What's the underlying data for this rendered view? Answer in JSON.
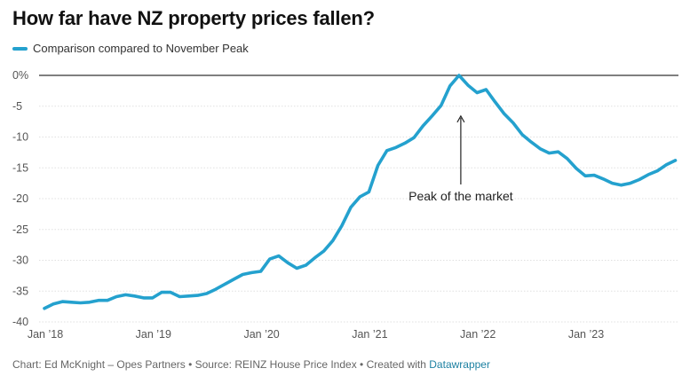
{
  "title": "How far have NZ property prices fallen?",
  "footer": {
    "prefix": "Chart: Ed McKnight – Opes Partners • Source: REINZ House Price Index • Created with ",
    "link": "Datawrapper"
  },
  "colors": {
    "line": "#24a1ce",
    "grid": "#e0e0e0",
    "zero_line": "#333333",
    "tick_text": "#555555"
  },
  "chart_data": {
    "type": "line",
    "title": "How far have NZ property prices fallen?",
    "xlabel": "",
    "ylabel": "",
    "ylim": [
      -40,
      0
    ],
    "yticks": [
      0,
      -5,
      -10,
      -15,
      -20,
      -25,
      -30,
      -35,
      -40
    ],
    "ytick_labels": [
      "0%",
      "-5",
      "-10",
      "-15",
      "-20",
      "-25",
      "-30",
      "-35",
      "-40"
    ],
    "xticks": [
      {
        "date": "2018-01",
        "label": "Jan ’18"
      },
      {
        "date": "2019-01",
        "label": "Jan ’19"
      },
      {
        "date": "2020-01",
        "label": "Jan ’20"
      },
      {
        "date": "2021-01",
        "label": "Jan ’21"
      },
      {
        "date": "2022-01",
        "label": "Jan ’22"
      },
      {
        "date": "2023-01",
        "label": "Jan ’23"
      }
    ],
    "grid": true,
    "legend": "top-left",
    "annotation": {
      "text": "Peak of the market",
      "date": "2021-11",
      "value": -6.6
    },
    "series": [
      {
        "name": "Comparison compared to November Peak",
        "points": [
          [
            "2018-01",
            -37.8
          ],
          [
            "2018-02",
            -37.1
          ],
          [
            "2018-03",
            -36.7
          ],
          [
            "2018-04",
            -36.8
          ],
          [
            "2018-05",
            -36.9
          ],
          [
            "2018-06",
            -36.8
          ],
          [
            "2018-07",
            -36.5
          ],
          [
            "2018-08",
            -36.5
          ],
          [
            "2018-09",
            -35.9
          ],
          [
            "2018-10",
            -35.6
          ],
          [
            "2018-11",
            -35.8
          ],
          [
            "2018-12",
            -36.1
          ],
          [
            "2019-01",
            -36.1
          ],
          [
            "2019-02",
            -35.2
          ],
          [
            "2019-03",
            -35.2
          ],
          [
            "2019-04",
            -35.9
          ],
          [
            "2019-05",
            -35.8
          ],
          [
            "2019-06",
            -35.7
          ],
          [
            "2019-07",
            -35.4
          ],
          [
            "2019-08",
            -34.7
          ],
          [
            "2019-09",
            -33.9
          ],
          [
            "2019-10",
            -33.1
          ],
          [
            "2019-11",
            -32.3
          ],
          [
            "2019-12",
            -32.0
          ],
          [
            "2020-01",
            -31.8
          ],
          [
            "2020-02",
            -29.8
          ],
          [
            "2020-03",
            -29.3
          ],
          [
            "2020-04",
            -30.4
          ],
          [
            "2020-05",
            -31.3
          ],
          [
            "2020-06",
            -30.8
          ],
          [
            "2020-07",
            -29.6
          ],
          [
            "2020-08",
            -28.5
          ],
          [
            "2020-09",
            -26.8
          ],
          [
            "2020-10",
            -24.4
          ],
          [
            "2020-11",
            -21.4
          ],
          [
            "2020-12",
            -19.7
          ],
          [
            "2021-01",
            -18.9
          ],
          [
            "2021-02",
            -14.6
          ],
          [
            "2021-03",
            -12.2
          ],
          [
            "2021-04",
            -11.7
          ],
          [
            "2021-05",
            -11.0
          ],
          [
            "2021-06",
            -10.1
          ],
          [
            "2021-07",
            -8.2
          ],
          [
            "2021-08",
            -6.6
          ],
          [
            "2021-09",
            -4.9
          ],
          [
            "2021-10",
            -1.7
          ],
          [
            "2021-11",
            0.0
          ],
          [
            "2021-12",
            -1.6
          ],
          [
            "2022-01",
            -2.8
          ],
          [
            "2022-02",
            -2.3
          ],
          [
            "2022-03",
            -4.3
          ],
          [
            "2022-04",
            -6.2
          ],
          [
            "2022-05",
            -7.7
          ],
          [
            "2022-06",
            -9.6
          ],
          [
            "2022-07",
            -10.8
          ],
          [
            "2022-08",
            -11.9
          ],
          [
            "2022-09",
            -12.6
          ],
          [
            "2022-10",
            -12.4
          ],
          [
            "2022-11",
            -13.5
          ],
          [
            "2022-12",
            -15.1
          ],
          [
            "2023-01",
            -16.3
          ],
          [
            "2023-02",
            -16.2
          ],
          [
            "2023-03",
            -16.8
          ],
          [
            "2023-04",
            -17.5
          ],
          [
            "2023-05",
            -17.8
          ],
          [
            "2023-06",
            -17.5
          ],
          [
            "2023-07",
            -16.9
          ],
          [
            "2023-08",
            -16.1
          ],
          [
            "2023-09",
            -15.5
          ],
          [
            "2023-10",
            -14.5
          ],
          [
            "2023-11",
            -13.8
          ]
        ]
      }
    ]
  }
}
